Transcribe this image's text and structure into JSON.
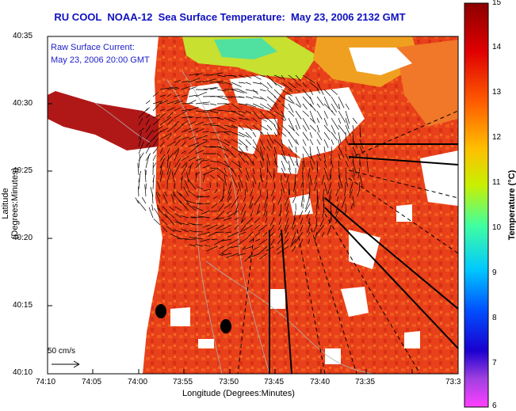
{
  "title": "RU COOL  NOAA-12  Sea Surface Temperature:  May 23, 2006 2132 GMT",
  "overlay": {
    "line1": "Raw Surface Current:",
    "line2": "May 23, 2006 20:00 GMT"
  },
  "axes": {
    "xlabel": "Longitude (Degrees:Minutes)",
    "ylabel": "Latitude (Degrees:Minutes)",
    "xticks": [
      "74:10",
      "74:05",
      "74:00",
      "73:55",
      "73:50",
      "73:45",
      "73:40",
      "73:35",
      "73:3"
    ],
    "yticks": [
      "40:35",
      "40:30",
      "40:25",
      "40:20",
      "40:15",
      "40:10"
    ]
  },
  "scale": {
    "label": "50 cm/s"
  },
  "colorbar": {
    "label": "Temperature (°C)",
    "ticks": [
      "15",
      "14",
      "13",
      "12",
      "11",
      "10",
      "9",
      "8",
      "7",
      "6"
    ],
    "min": 6,
    "max": 15
  },
  "colors": {
    "title": "#1010c0",
    "overlay_text": "#1c1cc8",
    "sst_dominant": "#e8401a"
  }
}
